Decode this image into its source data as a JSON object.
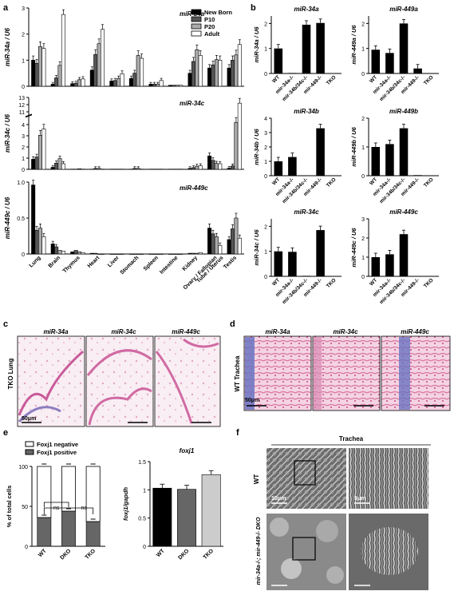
{
  "panel_letters": {
    "a": "a",
    "b": "b",
    "c": "c",
    "d": "d",
    "e": "e",
    "f": "f"
  },
  "panel_a": {
    "legend": [
      "New Born",
      "P10",
      "P20",
      "Adult"
    ],
    "legend_colors": [
      "#000000",
      "#555555",
      "#aaaaaa",
      "#ffffff"
    ],
    "tissues": [
      "Lung",
      "Brain",
      "Thymus",
      "Heart",
      "Liver",
      "Stomach",
      "Spleen",
      "Intestine",
      "Kidney",
      "Ovary / Fallopian Tube / Uterus",
      "Testis"
    ],
    "tissue_label_lines": [
      [
        "Lung"
      ],
      [
        "Brain"
      ],
      [
        "Thymus"
      ],
      [
        "Heart"
      ],
      [
        "Liver"
      ],
      [
        "Stomach"
      ],
      [
        "Spleen"
      ],
      [
        "Intestine"
      ],
      [
        "Kidney"
      ],
      [
        "Ovary / Fallopian",
        "Tube / Uterus"
      ],
      [
        "Testis"
      ]
    ]
  },
  "panel_b": {
    "genotypes_34a": [
      "WT",
      "mir-34a-/-",
      "mir-34b/34c-/-",
      "mir-449-/-",
      "TKO"
    ],
    "genotypes_449a": [
      "WT",
      "mir-34a-/-",
      "mir-34b/34c-/-",
      "mir-449-/-",
      "TKO"
    ]
  },
  "panel_c": {
    "side_label": "TKO Lung",
    "titles": [
      "miR-34a",
      "miR-34c",
      "miR-449c"
    ],
    "scale_bar": "50μm"
  },
  "panel_d": {
    "side_label": "WT Trachea",
    "titles": [
      "miR-34a",
      "miR-34c",
      "miR-449c"
    ],
    "scale_bar": "50μm"
  },
  "panel_e": {
    "legend": [
      "Foxj1 negative",
      "Foxj1 positive"
    ],
    "ns_label": "ns",
    "title_right": "foxj1"
  },
  "panel_f": {
    "header": "Trachea",
    "row_labels": [
      "WT",
      "mir-34a-/-; mir-449-/- DKO"
    ],
    "scale_bars": [
      "10μm",
      "5μm"
    ]
  },
  "chart_data": [
    {
      "type": "bar",
      "panel": "a",
      "title": "miR-34a",
      "ylabel": "miR-34a / U6",
      "ylim": [
        0,
        3
      ],
      "yticks": [
        "0",
        "1",
        "2",
        "3"
      ],
      "categories": [
        "Lung",
        "Brain",
        "Thymus",
        "Heart",
        "Liver",
        "Stomach",
        "Spleen",
        "Intestine",
        "Kidney",
        "Ovary / Fallopian Tube / Uterus",
        "Testis"
      ],
      "series": [
        {
          "name": "New Born",
          "values": [
            1.0,
            0.08,
            0.1,
            0.62,
            0.2,
            0.3,
            0.08,
            0.04,
            0.5,
            0.7,
            0.7
          ]
        },
        {
          "name": "P10",
          "values": [
            0.88,
            0.32,
            0.12,
            1.22,
            0.22,
            0.5,
            0.08,
            0.04,
            0.95,
            0.82,
            1.0
          ]
        },
        {
          "name": "P20",
          "values": [
            1.52,
            0.8,
            0.25,
            1.63,
            0.3,
            1.18,
            0.08,
            0.04,
            1.4,
            1.02,
            1.2
          ]
        },
        {
          "name": "Adult",
          "values": [
            1.45,
            2.75,
            0.28,
            2.18,
            0.48,
            1.07,
            0.22,
            0.04,
            1.18,
            1.0,
            1.6
          ]
        }
      ]
    },
    {
      "type": "bar",
      "panel": "a",
      "title": "miR-34c",
      "ylabel": "miR-34c / U6",
      "ylim": [
        0,
        13
      ],
      "yticks": [
        "0",
        "1",
        "2",
        "3",
        "4",
        "11",
        "12",
        "13"
      ],
      "axis_break": [
        4.5,
        10.8
      ],
      "categories": [
        "Lung",
        "Brain",
        "Thymus",
        "Heart",
        "Liver",
        "Stomach",
        "Spleen",
        "Intestine",
        "Kidney",
        "Ovary / Fallopian Tube / Uterus",
        "Testis"
      ],
      "series": [
        {
          "name": "New Born",
          "values": [
            0.9,
            0.18,
            0.02,
            0.02,
            0.02,
            0.02,
            0.02,
            0.02,
            0.08,
            1.2,
            0.1
          ]
        },
        {
          "name": "P10",
          "values": [
            1.1,
            0.55,
            0.02,
            0.08,
            0.02,
            0.08,
            0.02,
            0.02,
            0.15,
            0.8,
            0.3
          ]
        },
        {
          "name": "P20",
          "values": [
            3.05,
            0.95,
            0.05,
            0.08,
            0.02,
            0.08,
            0.02,
            0.02,
            0.28,
            0.52,
            4.2
          ]
        },
        {
          "name": "Adult",
          "values": [
            3.6,
            0.5,
            0.02,
            0.02,
            0.02,
            0.02,
            0.02,
            0.02,
            0.32,
            0.5,
            12.2
          ]
        }
      ]
    },
    {
      "type": "bar",
      "panel": "a",
      "title": "miR-449c",
      "ylabel": "miR-449c / U6",
      "ylim": [
        0,
        1
      ],
      "yticks": [
        "0",
        "0.5",
        "1.0"
      ],
      "categories": [
        "Lung",
        "Brain",
        "Thymus",
        "Heart",
        "Liver",
        "Stomach",
        "Spleen",
        "Intestine",
        "Kidney",
        "Ovary / Fallopian Tube / Uterus",
        "Testis"
      ],
      "series": [
        {
          "name": "New Born",
          "values": [
            0.96,
            0.14,
            0.03,
            0.01,
            0.0,
            0.0,
            0.0,
            0.0,
            0.01,
            0.36,
            0.2
          ]
        },
        {
          "name": "P10",
          "values": [
            0.33,
            0.1,
            0.05,
            0.01,
            0.0,
            0.0,
            0.0,
            0.0,
            0.01,
            0.28,
            0.35
          ]
        },
        {
          "name": "P20",
          "values": [
            0.36,
            0.05,
            0.03,
            0.0,
            0.0,
            0.0,
            0.0,
            0.0,
            0.01,
            0.24,
            0.5
          ]
        },
        {
          "name": "Adult",
          "values": [
            0.24,
            0.04,
            0.02,
            0.0,
            0.0,
            0.0,
            0.0,
            0.0,
            0.02,
            0.12,
            0.22
          ]
        }
      ]
    },
    {
      "type": "bar",
      "panel": "b",
      "title": "miR-34a",
      "ylabel": "miR-34a / U6",
      "ylim": [
        0,
        2.3
      ],
      "yticks": [
        "0",
        "1",
        "2"
      ],
      "categories": [
        "WT",
        "mir-34a-/-",
        "mir-34b/34c-/-",
        "mir-449-/-",
        "TKO"
      ],
      "values": [
        1.0,
        0.02,
        1.95,
        2.02,
        0.0
      ]
    },
    {
      "type": "bar",
      "panel": "b",
      "title": "miR-449a",
      "ylabel": "miR-449a / U6",
      "ylim": [
        0,
        2.3
      ],
      "yticks": [
        "0",
        "1",
        "2"
      ],
      "categories": [
        "WT",
        "mir-34a-/-",
        "mir-34b/34c-/-",
        "mir-449-/-",
        "TKO"
      ],
      "values": [
        0.95,
        0.82,
        2.0,
        0.2,
        0.0
      ]
    },
    {
      "type": "bar",
      "panel": "b",
      "title": "miR-34b",
      "ylabel": "miR-34b / U6",
      "ylim": [
        0,
        4
      ],
      "yticks": [
        "0",
        "1",
        "2",
        "3",
        "4"
      ],
      "categories": [
        "WT",
        "mir-34a-/-",
        "mir-34b/34c-/-",
        "mir-449-/-",
        "TKO"
      ],
      "values": [
        1.0,
        1.3,
        0.02,
        3.3,
        0.0
      ]
    },
    {
      "type": "bar",
      "panel": "b",
      "title": "miR-449b",
      "ylabel": "miR-449b / U6",
      "ylim": [
        0,
        2
      ],
      "yticks": [
        "0",
        "1",
        "2"
      ],
      "categories": [
        "WT",
        "mir-34a-/-",
        "mir-34b/34c-/-",
        "mir-449-/-",
        "TKO"
      ],
      "values": [
        1.0,
        1.1,
        1.65,
        0.02,
        0.0
      ]
    },
    {
      "type": "bar",
      "panel": "b",
      "title": "miR-34c",
      "ylabel": "miR-34c / U6",
      "ylim": [
        0,
        2.3
      ],
      "yticks": [
        "0",
        "1",
        "2"
      ],
      "categories": [
        "WT",
        "mir-34a-/-",
        "mir-34b/34c-/-",
        "mir-449-/-",
        "TKO"
      ],
      "values": [
        1.0,
        0.98,
        0.02,
        1.85,
        0.0
      ]
    },
    {
      "type": "bar",
      "panel": "b",
      "title": "miR-449c",
      "ylabel": "miR-449c / U6",
      "ylim": [
        0,
        3
      ],
      "yticks": [
        "0",
        "1",
        "2",
        "3"
      ],
      "categories": [
        "WT",
        "mir-34a-/-",
        "mir-34b/34c-/-",
        "mir-449-/-",
        "TKO"
      ],
      "values": [
        1.0,
        1.15,
        2.2,
        0.02,
        0.0
      ]
    },
    {
      "type": "bar",
      "panel": "e",
      "stacked": true,
      "ylabel": "% of total cells",
      "ylim": [
        0,
        100
      ],
      "yticks": [
        "0",
        "50",
        "100"
      ],
      "categories": [
        "WT",
        "DKO",
        "TKO"
      ],
      "series": [
        {
          "name": "Foxj1 positive",
          "values": [
            36,
            44,
            31
          ]
        },
        {
          "name": "Foxj1 negative",
          "values": [
            64,
            56,
            69
          ]
        }
      ]
    },
    {
      "type": "bar",
      "panel": "e",
      "title": "foxj1",
      "ylabel": "foxj1/gapdh",
      "ylim": [
        0,
        1.5
      ],
      "yticks": [
        "0",
        "0.5",
        "1",
        "1.5"
      ],
      "categories": [
        "WT",
        "DKO",
        "TKO"
      ],
      "values": [
        1.03,
        1.01,
        1.27
      ],
      "colors": [
        "#000000",
        "#666666",
        "#cccccc"
      ]
    }
  ]
}
